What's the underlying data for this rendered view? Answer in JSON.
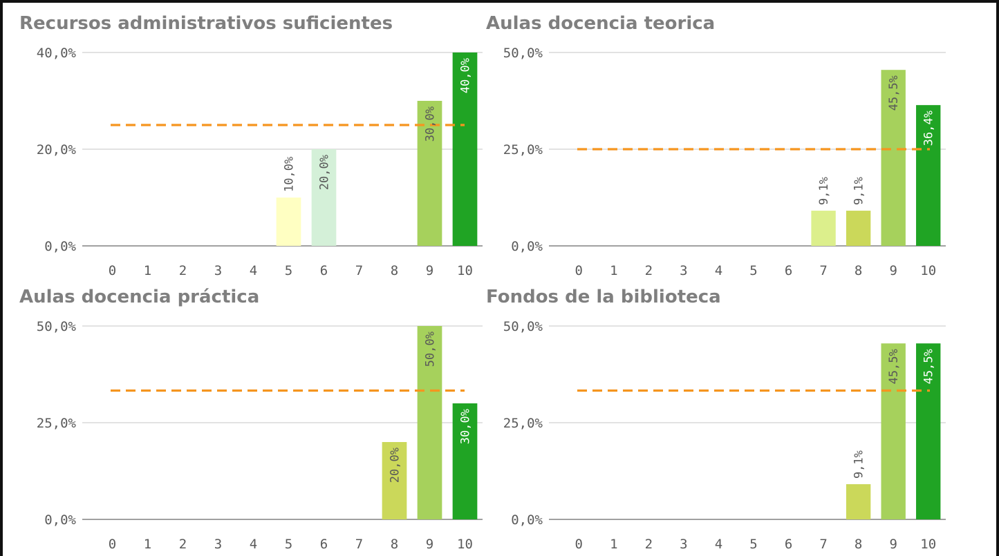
{
  "chart_data": [
    {
      "type": "bar",
      "title": "Recursos administrativos suficientes",
      "categories": [
        "0",
        "1",
        "2",
        "3",
        "4",
        "5",
        "6",
        "7",
        "8",
        "9",
        "10"
      ],
      "values": [
        0,
        0,
        0,
        0,
        0,
        10.0,
        20.0,
        0,
        0,
        30.0,
        40.0
      ],
      "data_labels": [
        "",
        "",
        "",
        "",
        "",
        "10,0%",
        "20,0%",
        "",
        "",
        "30,0%",
        "40,0%"
      ],
      "bar_colors": [
        "#ffffff",
        "#ffffff",
        "#ffffff",
        "#ffffff",
        "#ffffff",
        "#ffffc2",
        "#d4f0d8",
        "#ffffff",
        "#ffffff",
        "#a6d15c",
        "#20a424"
      ],
      "yticks": [
        0,
        20,
        40
      ],
      "ytick_labels": [
        "0,0%",
        "20,0%",
        "40,0%"
      ],
      "ylim": [
        0,
        40
      ],
      "reference_line": 25,
      "grid": true
    },
    {
      "type": "bar",
      "title": "Aulas docencia teorica",
      "categories": [
        "0",
        "1",
        "2",
        "3",
        "4",
        "5",
        "6",
        "7",
        "8",
        "9",
        "10"
      ],
      "values": [
        0,
        0,
        0,
        0,
        0,
        0,
        0,
        9.1,
        9.1,
        45.5,
        36.4
      ],
      "data_labels": [
        "",
        "",
        "",
        "",
        "",
        "",
        "",
        "9,1%",
        "9,1%",
        "45,5%",
        "36,4%"
      ],
      "bar_colors": [
        "#ffffff",
        "#ffffff",
        "#ffffff",
        "#ffffff",
        "#ffffff",
        "#ffffff",
        "#ffffff",
        "#dcef8c",
        "#cbd85a",
        "#a6d15c",
        "#20a424"
      ],
      "yticks": [
        0,
        25,
        50
      ],
      "ytick_labels": [
        "0,0%",
        "25,0%",
        "50,0%"
      ],
      "ylim": [
        0,
        50
      ],
      "reference_line": 25,
      "grid": true
    },
    {
      "type": "bar",
      "title": "Aulas docencia práctica",
      "categories": [
        "0",
        "1",
        "2",
        "3",
        "4",
        "5",
        "6",
        "7",
        "8",
        "9",
        "10"
      ],
      "values": [
        0,
        0,
        0,
        0,
        0,
        0,
        0,
        0,
        20.0,
        50.0,
        30.0
      ],
      "data_labels": [
        "",
        "",
        "",
        "",
        "",
        "",
        "",
        "",
        "20,0%",
        "50,0%",
        "30,0%"
      ],
      "bar_colors": [
        "#ffffff",
        "#ffffff",
        "#ffffff",
        "#ffffff",
        "#ffffff",
        "#ffffff",
        "#ffffff",
        "#ffffff",
        "#cbd85a",
        "#a6d15c",
        "#20a424"
      ],
      "yticks": [
        0,
        25,
        50
      ],
      "ytick_labels": [
        "0,0%",
        "25,0%",
        "50,0%"
      ],
      "ylim": [
        0,
        50
      ],
      "reference_line": 33.3,
      "grid": true
    },
    {
      "type": "bar",
      "title": "Fondos de la biblioteca",
      "categories": [
        "0",
        "1",
        "2",
        "3",
        "4",
        "5",
        "6",
        "7",
        "8",
        "9",
        "10"
      ],
      "values": [
        0,
        0,
        0,
        0,
        0,
        0,
        0,
        0,
        9.1,
        45.5,
        45.5
      ],
      "data_labels": [
        "",
        "",
        "",
        "",
        "",
        "",
        "",
        "",
        "9,1%",
        "45,5%",
        "45,5%"
      ],
      "bar_colors": [
        "#ffffff",
        "#ffffff",
        "#ffffff",
        "#ffffff",
        "#ffffff",
        "#ffffff",
        "#ffffff",
        "#ffffff",
        "#cbd85a",
        "#a6d15c",
        "#20a424"
      ],
      "yticks": [
        0,
        25,
        50
      ],
      "ytick_labels": [
        "0,0%",
        "25,0%",
        "50,0%"
      ],
      "ylim": [
        0,
        50
      ],
      "reference_line": 33.3,
      "grid": true
    }
  ],
  "colors": {
    "title": "#7f7f7f",
    "tick": "#5a5a5a",
    "grid": "#d9d9d9",
    "axis": "#a0a0a0",
    "reference_line": "#f5951f",
    "label_inside_dark": "#ffffff",
    "label_outside": "#595959"
  }
}
